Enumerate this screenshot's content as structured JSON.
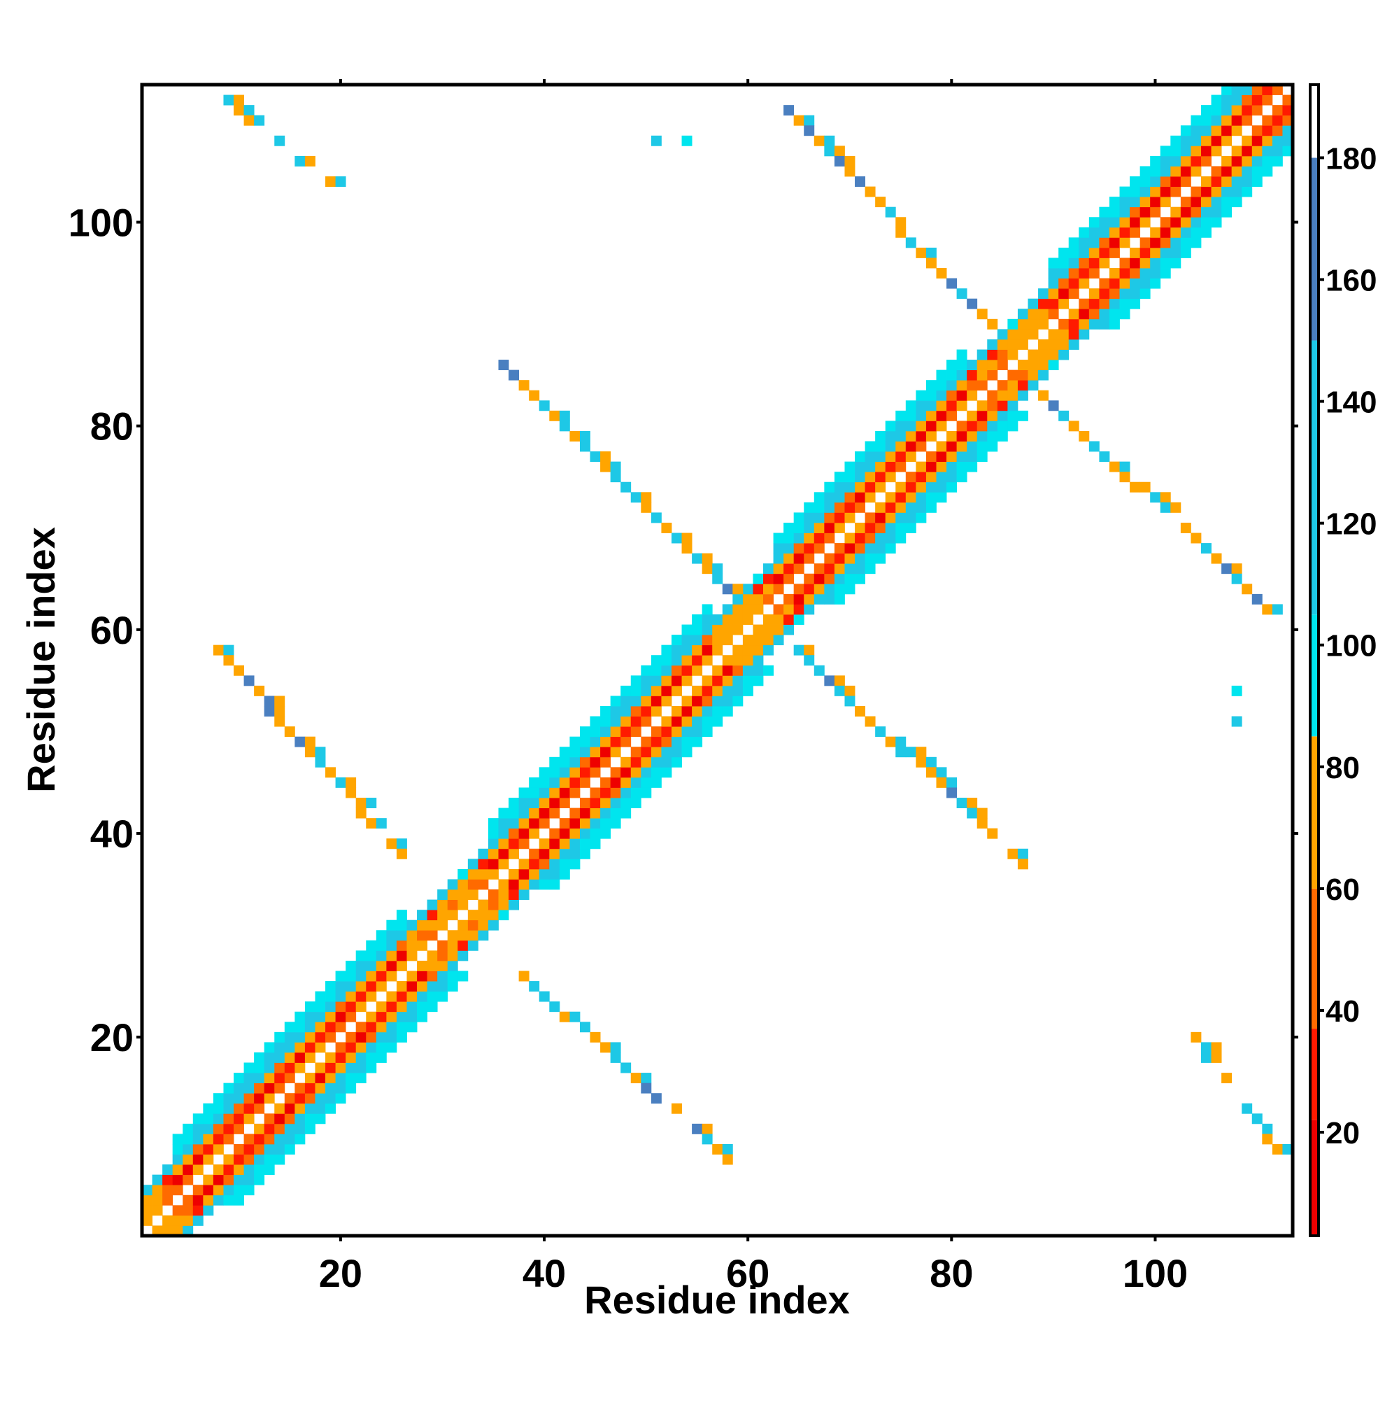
{
  "chart_data": {
    "type": "heatmap",
    "title": "",
    "xlabel": "Residue index",
    "ylabel": "Residue index",
    "xlim": [
      0.5,
      113.5
    ],
    "ylim": [
      0.5,
      113.5
    ],
    "x_ticks": [
      20,
      40,
      60,
      80,
      100
    ],
    "y_ticks": [
      20,
      40,
      60,
      80,
      100
    ],
    "colorbar": {
      "range": [
        3,
        192
      ],
      "ticks": [
        20,
        40,
        60,
        80,
        100,
        120,
        140,
        160,
        180
      ],
      "color_stops": [
        {
          "from": 3,
          "to": 22,
          "color": "#ee0000"
        },
        {
          "from": 22,
          "to": 37,
          "color": "#ff1a00"
        },
        {
          "from": 37,
          "to": 60,
          "color": "#ff6a00"
        },
        {
          "from": 60,
          "to": 85,
          "color": "#ffa500"
        },
        {
          "from": 85,
          "to": 105,
          "color": "#00e5ee"
        },
        {
          "from": 105,
          "to": 150,
          "color": "#1ec8e6"
        },
        {
          "from": 150,
          "to": 180,
          "color": "#4a7fc0"
        },
        {
          "from": 180,
          "to": 192,
          "color": "#ffffff"
        }
      ]
    },
    "band_width": 7,
    "band_segments": [
      {
        "from": 1,
        "to": 4,
        "style": "tail"
      },
      {
        "from": 4,
        "to": 27,
        "style": "helix"
      },
      {
        "from": 27,
        "to": 35,
        "style": "tail"
      },
      {
        "from": 35,
        "to": 57,
        "style": "helix"
      },
      {
        "from": 57,
        "to": 63,
        "style": "tail"
      },
      {
        "from": 63,
        "to": 82,
        "style": "helix"
      },
      {
        "from": 82,
        "to": 90,
        "style": "tail"
      },
      {
        "from": 90,
        "to": 113,
        "style": "helix"
      }
    ],
    "off_diagonal_lines": [
      {
        "x_start": 9,
        "y_start": 112,
        "x_end": 19,
        "y_end": 104,
        "step": 0.8
      },
      {
        "x_start": 8,
        "y_start": 58,
        "x_end": 26,
        "y_end": 38,
        "step": 0.9
      },
      {
        "x_start": 36,
        "y_start": 86,
        "x_end": 59,
        "y_end": 63,
        "step": 1.0
      },
      {
        "x_start": 64,
        "y_start": 111,
        "x_end": 86,
        "y_end": 88,
        "step": 1.0
      },
      {
        "x_start": 38,
        "y_start": 26,
        "x_end": 58,
        "y_end": 8,
        "step": 0.9
      },
      {
        "x_start": 65,
        "y_start": 58,
        "x_end": 87,
        "y_end": 37,
        "step": 0.95
      },
      {
        "x_start": 87,
        "y_start": 85,
        "x_end": 111,
        "y_end": 62,
        "step": 0.95
      },
      {
        "x_start": 104,
        "y_start": 20,
        "x_end": 112,
        "y_end": 9,
        "step": 0.7
      }
    ],
    "isolated_contacts": [
      {
        "x": 51,
        "y": 108,
        "value": 120
      },
      {
        "x": 54,
        "y": 108,
        "value": 100
      },
      {
        "x": 108,
        "y": 54,
        "value": 100
      },
      {
        "x": 108,
        "y": 51,
        "value": 120
      }
    ]
  }
}
